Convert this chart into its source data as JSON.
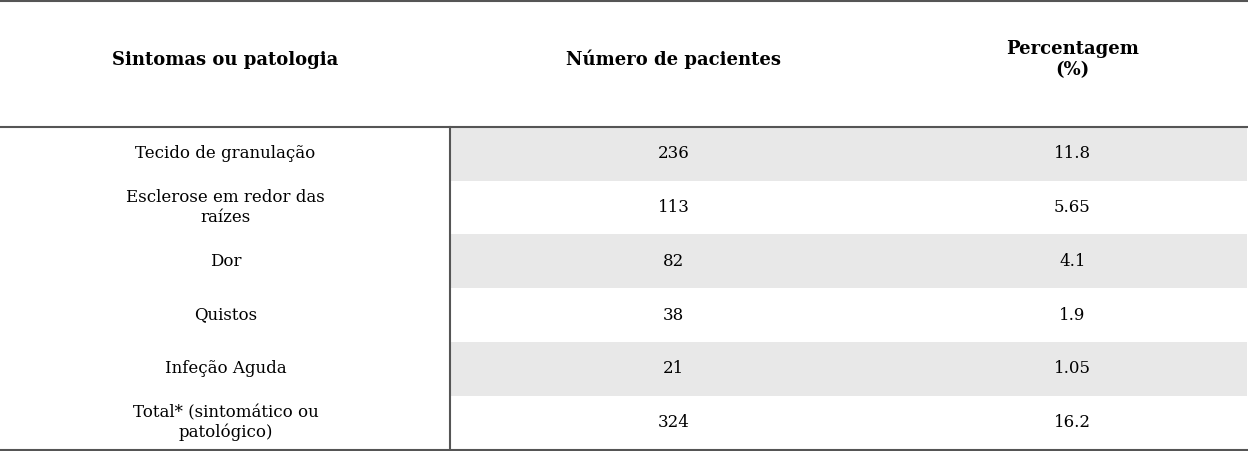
{
  "col_headers": [
    "Sintomas ou patologia",
    "Número de pacientes",
    "Percentagem\n(%)"
  ],
  "rows": [
    [
      "Tecido de granulação",
      "236",
      "11.8"
    ],
    [
      "Esclerose em redor das\nraízes",
      "113",
      "5.65"
    ],
    [
      "Dor",
      "82",
      "4.1"
    ],
    [
      "Quistos",
      "38",
      "1.9"
    ],
    [
      "Infeção Aguda",
      "21",
      "1.05"
    ],
    [
      "Total* (sintomático ou\npatológico)",
      "324",
      "16.2"
    ]
  ],
  "shaded_rows": [
    0,
    2,
    4
  ],
  "shade_color": "#e8e8e8",
  "bg_color": "#ffffff",
  "header_fontsize": 13,
  "cell_fontsize": 12,
  "figsize": [
    12.48,
    4.51
  ],
  "dpi": 100,
  "line_color": "#555555",
  "text_color": "#000000"
}
